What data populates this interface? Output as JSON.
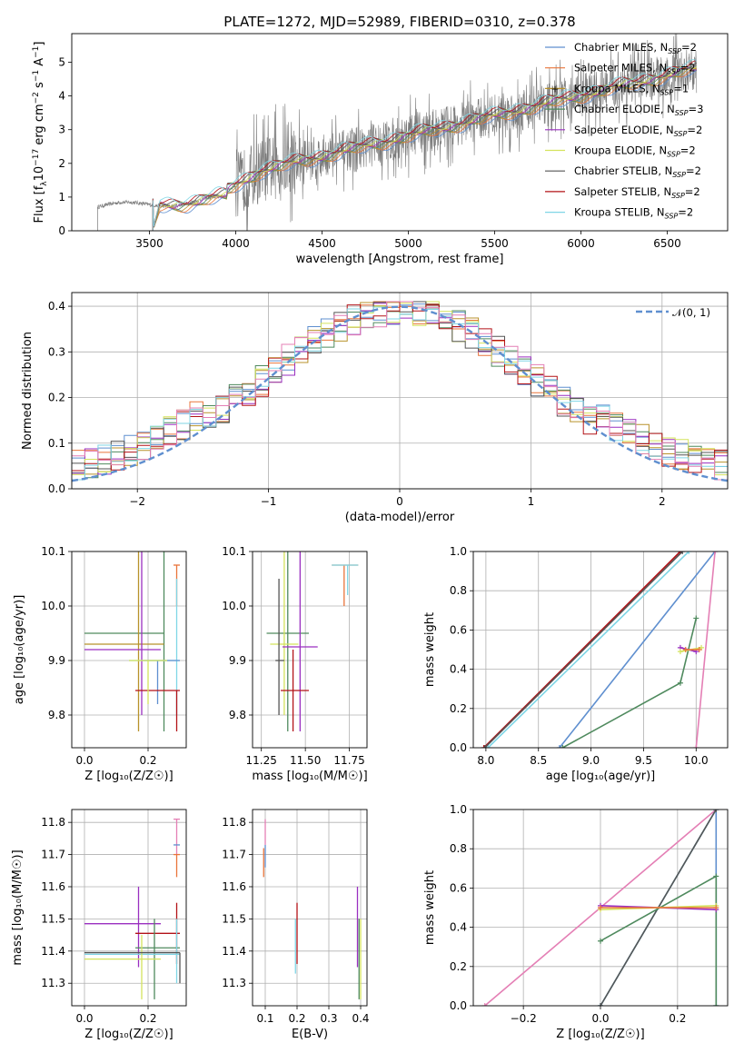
{
  "colors": {
    "Chabrier MILES": "#5f8fcf",
    "Salpeter MILES": "#e9743a",
    "Kroupa MILES": "#b8922b",
    "Chabrier ELODIE": "#4f8a5e",
    "Salpeter ELODIE": "#9a2fc0",
    "Kroupa ELODIE": "#d4e35c",
    "Chabrier STELIB": "#555555",
    "Salpeter STELIB": "#b31217",
    "Kroupa STELIB": "#7fd6e6",
    "Salpeter ELODIE pink": "#e47fb5"
  },
  "chart_data": [
    {
      "id": "spectrum",
      "type": "line",
      "title": "PLATE=1272, MJD=52989, FIBERID=0310, z=0.378",
      "xlabel": "wavelength [Angstrom, rest frame]",
      "ylabel": "Flux [f_λ10^-17 erg cm^-2 s^-1 A^-1]",
      "ylabel_parts": {
        "a": "Flux [f",
        "b": "λ",
        "c": "10",
        "d": "−17",
        "e": " erg cm",
        "f": "−2",
        "g": " s",
        "h": "−1",
        "i": " A",
        "j": "−1",
        "k": "]"
      },
      "xlim": [
        3050,
        6850
      ],
      "ylim": [
        0,
        5.85
      ],
      "xticks": [
        3500,
        4000,
        4500,
        5000,
        5500,
        6000,
        6500
      ],
      "yticks": [
        0,
        1,
        2,
        3,
        4,
        5
      ],
      "grid": false,
      "legend_position": "top-right",
      "legend": [
        {
          "pre": "Chabrier MILES, N",
          "sub": "SSP",
          "post": "=2",
          "color": "#5f8fcf"
        },
        {
          "pre": "Salpeter MILES, N",
          "sub": "SSP",
          "post": "=2",
          "color": "#e9743a"
        },
        {
          "pre": "Kroupa MILES, N",
          "sub": "SSP",
          "post": "=1",
          "color": "#b8922b"
        },
        {
          "pre": "Chabrier ELODIE, N",
          "sub": "SSP",
          "post": "=3",
          "color": "#4f8a5e"
        },
        {
          "pre": "Salpeter ELODIE, N",
          "sub": "SSP",
          "post": "=2",
          "color": "#9a2fc0"
        },
        {
          "pre": "Kroupa ELODIE, N",
          "sub": "SSP",
          "post": "=2",
          "color": "#d4e35c"
        },
        {
          "pre": "Chabrier STELIB, N",
          "sub": "SSP",
          "post": "=2",
          "color": "#555555"
        },
        {
          "pre": "Salpeter STELIB, N",
          "sub": "SSP",
          "post": "=2",
          "color": "#b31217"
        },
        {
          "pre": "Kroupa STELIB, N",
          "sub": "SSP",
          "post": "=2",
          "color": "#7fd6e6"
        }
      ],
      "data_start_wavelength": 3200,
      "data_end_wavelength": 6670,
      "noisy_data_start": 4000
    },
    {
      "id": "residuals",
      "type": "histogram",
      "xlabel": "(data-model)/error",
      "ylabel": "Normed distribution",
      "xlim": [
        -2.5,
        2.5
      ],
      "ylim": [
        0,
        0.43
      ],
      "xticks": [
        -2,
        -1,
        0,
        1,
        2
      ],
      "yticks": [
        0.0,
        0.1,
        0.2,
        0.3,
        0.4
      ],
      "grid": true,
      "legend_position": "top-right",
      "legend": [
        {
          "label": "𝒩(0, 1)",
          "color": "#5f8fcf",
          "style": "dashed"
        }
      ],
      "bin_width": 0.1,
      "normal_mean": 0,
      "normal_sigma": 1
    },
    {
      "id": "age-vs-Z",
      "type": "errorbar",
      "xlabel": "Z [log₁₀(Z/Z☉)]",
      "ylabel": "age  [log₁₀(age/yr)]",
      "xlim": [
        -0.04,
        0.32
      ],
      "ylim": [
        9.74,
        10.1
      ],
      "xticks": [
        0.0,
        0.2
      ],
      "yticks": [
        9.8,
        9.9,
        10.0,
        10.1
      ],
      "grid": true,
      "points": [
        {
          "x": 0.29,
          "y": 10.075,
          "xl": 0.28,
          "xr": 0.3,
          "yl": 10.0,
          "yh": 10.075,
          "c": "#e9743a"
        },
        {
          "x": 0.25,
          "y": 9.95,
          "xl": 0.0,
          "xr": 0.25,
          "yl": 9.77,
          "yh": 10.115,
          "c": "#4f8a5e"
        },
        {
          "x": 0.17,
          "y": 9.93,
          "xl": 0.0,
          "xr": 0.25,
          "yl": 9.77,
          "yh": 10.11,
          "c": "#b8922b"
        },
        {
          "x": 0.18,
          "y": 9.92,
          "xl": 0.0,
          "xr": 0.24,
          "yl": 9.8,
          "yh": 10.1,
          "c": "#9a2fc0"
        },
        {
          "x": 0.29,
          "y": 9.9,
          "xl": 0.14,
          "xr": 0.3,
          "yl": 9.8,
          "yh": 10.05,
          "c": "#7fd6e6"
        },
        {
          "x": 0.23,
          "y": 9.9,
          "xl": 0.18,
          "xr": 0.3,
          "yl": 9.82,
          "yh": 9.9,
          "c": "#5f8fcf"
        },
        {
          "x": 0.29,
          "y": 9.845,
          "xl": 0.16,
          "xr": 0.3,
          "yl": 9.77,
          "yh": 9.845,
          "c": "#b31217"
        },
        {
          "x": 0.2,
          "y": 9.9,
          "xl": 0.14,
          "xr": 0.26,
          "yl": 9.82,
          "yh": 9.9,
          "c": "#d4e35c"
        }
      ]
    },
    {
      "id": "age-vs-mass",
      "type": "errorbar",
      "xlabel": "mass [log₁₀(M/M☉)]",
      "ylabel": "",
      "xlim": [
        11.2,
        11.85
      ],
      "ylim": [
        9.74,
        10.1
      ],
      "xticks": [
        11.25,
        11.5,
        11.75
      ],
      "yticks": [
        9.8,
        9.9,
        10.0,
        10.1
      ],
      "grid": true,
      "points": [
        {
          "x": 11.72,
          "y": 10.075,
          "xl": 11.65,
          "xr": 11.8,
          "yl": 10.0,
          "yh": 10.075,
          "c": "#e9743a"
        },
        {
          "x": 11.74,
          "y": 10.075,
          "xl": 11.65,
          "xr": 11.8,
          "yl": 10.02,
          "yh": 10.075,
          "c": "#7fd6e6"
        },
        {
          "x": 11.4,
          "y": 9.95,
          "xl": 11.28,
          "xr": 11.52,
          "yl": 9.77,
          "yh": 10.11,
          "c": "#4f8a5e"
        },
        {
          "x": 11.38,
          "y": 9.93,
          "xl": 11.3,
          "xr": 11.46,
          "yl": 9.8,
          "yh": 10.11,
          "c": "#d4e35c"
        },
        {
          "x": 11.47,
          "y": 9.925,
          "xl": 11.37,
          "xr": 11.57,
          "yl": 9.77,
          "yh": 10.1,
          "c": "#9a2fc0"
        },
        {
          "x": 11.35,
          "y": 9.9,
          "xl": 11.33,
          "xr": 11.38,
          "yl": 9.8,
          "yh": 10.05,
          "c": "#555555"
        },
        {
          "x": 11.43,
          "y": 9.845,
          "xl": 11.36,
          "xr": 11.52,
          "yl": 9.77,
          "yh": 9.92,
          "c": "#b31217"
        }
      ]
    },
    {
      "id": "massweight-vs-age",
      "type": "line",
      "xlabel": "age  [log₁₀(age/yr)]",
      "ylabel": "mass weight",
      "xlim": [
        7.88,
        10.3
      ],
      "ylim": [
        0,
        1
      ],
      "xticks": [
        8.0,
        8.5,
        9.0,
        9.5,
        10.0
      ],
      "yticks": [
        0.0,
        0.2,
        0.4,
        0.6,
        0.8,
        1.0
      ],
      "grid": true,
      "series": [
        {
          "c": "#b31217",
          "x": [
            7.98,
            9.85
          ],
          "y": [
            0.0,
            1.0
          ]
        },
        {
          "c": "#7fd6e6",
          "x": [
            8.02,
            9.93
          ],
          "y": [
            0.0,
            1.0
          ]
        },
        {
          "c": "#555555",
          "x": [
            7.99,
            9.87
          ],
          "y": [
            0.0,
            1.0
          ]
        },
        {
          "c": "#5f8fcf",
          "x": [
            8.7,
            10.18
          ],
          "y": [
            0.0,
            1.0
          ]
        },
        {
          "c": "#e47fb5",
          "x": [
            10.0,
            10.18
          ],
          "y": [
            0.0,
            1.0
          ]
        },
        {
          "c": "#4f8a5e",
          "x": [
            8.73,
            9.85,
            10.0
          ],
          "y": [
            0.0,
            0.33,
            0.66
          ]
        },
        {
          "c": "#9a2fc0",
          "x": [
            9.85,
            10.0
          ],
          "y": [
            0.51,
            0.49
          ]
        },
        {
          "c": "#d4e35c",
          "x": [
            9.85,
            10.05
          ],
          "y": [
            0.49,
            0.51
          ]
        },
        {
          "c": "#e9743a",
          "x": [
            9.9,
            10.03
          ],
          "y": [
            0.5,
            0.5
          ]
        }
      ]
    },
    {
      "id": "mass-vs-Z",
      "type": "errorbar",
      "xlabel": "Z [log₁₀(Z/Z☉)]",
      "ylabel": "mass [log₁₀(M/M☉)]",
      "xlim": [
        -0.04,
        0.32
      ],
      "ylim": [
        11.23,
        11.84
      ],
      "xticks": [
        0.0,
        0.2
      ],
      "yticks": [
        11.3,
        11.4,
        11.5,
        11.6,
        11.7,
        11.8
      ],
      "grid": true,
      "points": [
        {
          "x": 0.29,
          "y": 11.81,
          "xl": 0.28,
          "xr": 0.3,
          "yl": 11.7,
          "yh": 11.81,
          "c": "#e47fb5"
        },
        {
          "x": 0.29,
          "y": 11.73,
          "xl": 0.28,
          "xr": 0.3,
          "yl": 11.73,
          "yh": 11.73,
          "c": "#5f8fcf"
        },
        {
          "x": 0.29,
          "y": 11.7,
          "xl": 0.28,
          "xr": 0.3,
          "yl": 11.63,
          "yh": 11.7,
          "c": "#e9743a"
        },
        {
          "x": 0.17,
          "y": 11.485,
          "xl": 0.0,
          "xr": 0.24,
          "yl": 11.35,
          "yh": 11.6,
          "c": "#9a2fc0"
        },
        {
          "x": 0.29,
          "y": 11.455,
          "xl": 0.16,
          "xr": 0.3,
          "yl": 11.36,
          "yh": 11.55,
          "c": "#b31217"
        },
        {
          "x": 0.22,
          "y": 11.41,
          "xl": 0.16,
          "xr": 0.3,
          "yl": 11.25,
          "yh": 11.5,
          "c": "#4f8a5e"
        },
        {
          "x": 0.29,
          "y": 11.39,
          "xl": 0.0,
          "xr": 0.3,
          "yl": 11.3,
          "yh": 11.5,
          "c": "#7fd6e6"
        },
        {
          "x": 0.18,
          "y": 11.375,
          "xl": 0.0,
          "xr": 0.24,
          "yl": 11.25,
          "yh": 11.45,
          "c": "#d4e35c"
        },
        {
          "x": 0.3,
          "y": 11.395,
          "xl": 0.0,
          "xr": 0.3,
          "yl": 11.3,
          "yh": 11.395,
          "c": "#555555"
        }
      ]
    },
    {
      "id": "mass-vs-ebv",
      "type": "errorbar",
      "xlabel": "E(B-V)",
      "ylabel": "",
      "xlim": [
        0.06,
        0.42
      ],
      "ylim": [
        11.23,
        11.84
      ],
      "xticks": [
        0.1,
        0.2,
        0.3,
        0.4
      ],
      "yticks": [
        11.3,
        11.4,
        11.5,
        11.6,
        11.7,
        11.8
      ],
      "grid": true,
      "points": [
        {
          "x": 0.1,
          "y": 11.81,
          "xl": 0.1,
          "xr": 0.1,
          "yl": 11.73,
          "yh": 11.81,
          "c": "#e47fb5"
        },
        {
          "x": 0.095,
          "y": 11.72,
          "xl": 0.095,
          "xr": 0.095,
          "yl": 11.63,
          "yh": 11.72,
          "c": "#e9743a"
        },
        {
          "x": 0.1,
          "y": 11.7,
          "xl": 0.1,
          "xr": 0.1,
          "yl": 11.66,
          "yh": 11.73,
          "c": "#5f8fcf"
        },
        {
          "x": 0.2,
          "y": 11.45,
          "xl": 0.2,
          "xr": 0.2,
          "yl": 11.36,
          "yh": 11.55,
          "c": "#b31217"
        },
        {
          "x": 0.195,
          "y": 11.41,
          "xl": 0.195,
          "xr": 0.195,
          "yl": 11.33,
          "yh": 11.5,
          "c": "#7fd6e6"
        },
        {
          "x": 0.39,
          "y": 11.45,
          "xl": 0.39,
          "xr": 0.39,
          "yl": 11.35,
          "yh": 11.6,
          "c": "#9a2fc0"
        },
        {
          "x": 0.395,
          "y": 11.4,
          "xl": 0.395,
          "xr": 0.395,
          "yl": 11.25,
          "yh": 11.5,
          "c": "#4f8a5e"
        },
        {
          "x": 0.4,
          "y": 11.38,
          "xl": 0.4,
          "xr": 0.4,
          "yl": 11.25,
          "yh": 11.5,
          "c": "#d4e35c"
        }
      ]
    },
    {
      "id": "massweight-vs-Z",
      "type": "line",
      "xlabel": "Z [log₁₀(Z/Z☉)]",
      "ylabel": "mass weight",
      "xlim": [
        -0.33,
        0.33
      ],
      "ylim": [
        0,
        1
      ],
      "xticks": [
        -0.2,
        0.0,
        0.2
      ],
      "yticks": [
        0.0,
        0.2,
        0.4,
        0.6,
        0.8,
        1.0
      ],
      "grid": true,
      "series": [
        {
          "c": "#e47fb5",
          "x": [
            -0.3,
            0.3
          ],
          "y": [
            0.0,
            1.0
          ]
        },
        {
          "c": "#5f8fcf",
          "x": [
            0.0,
            0.3,
            0.3
          ],
          "y": [
            0.0,
            1.0,
            0.0
          ]
        },
        {
          "c": "#7fd6e6",
          "x": [
            0.0,
            0.3
          ],
          "y": [
            0.0,
            1.0
          ]
        },
        {
          "c": "#555555",
          "x": [
            0.0,
            0.3
          ],
          "y": [
            0.0,
            1.0
          ]
        },
        {
          "c": "#4f8a5e",
          "x": [
            0.0,
            0.3,
            0.3
          ],
          "y": [
            0.33,
            0.66,
            0.0
          ]
        },
        {
          "c": "#9a2fc0",
          "x": [
            0.0,
            0.3
          ],
          "y": [
            0.51,
            0.49
          ]
        },
        {
          "c": "#d4e35c",
          "x": [
            0.0,
            0.3
          ],
          "y": [
            0.49,
            0.51
          ]
        },
        {
          "c": "#e9743a",
          "x": [
            0.0,
            0.3
          ],
          "y": [
            0.5,
            0.5
          ]
        }
      ]
    }
  ]
}
